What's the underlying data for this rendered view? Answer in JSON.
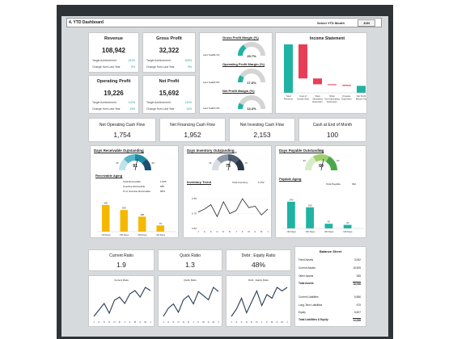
{
  "header": {
    "title": "4. YTD Dashboard",
    "select_label": "Select YTD Month",
    "month": "JUN"
  },
  "kpis": [
    {
      "title": "Revenue",
      "value": "108,942",
      "target_label": "Target Achievement",
      "target_pct": "101%",
      "change_label": "Change from Last Year",
      "change_pct": "5%"
    },
    {
      "title": "Gross Profit",
      "value": "32,322",
      "target_label": "Target Achievement",
      "target_pct": "109%",
      "change_label": "Change from Last Year",
      "change_pct": "9%"
    },
    {
      "title": "Operating Profit",
      "value": "19,226",
      "target_label": "Target Achievement",
      "target_pct": "112%",
      "change_label": "Change from Last Year",
      "change_pct": "13%"
    },
    {
      "title": "Net Profit",
      "value": "15,692",
      "target_label": "Target Achievement",
      "target_pct": "111%",
      "change_label": "Change from Last Year",
      "change_pct": "14%"
    }
  ],
  "margins": [
    {
      "title": "Gross Profit Margin (%)",
      "value": "29.7%",
      "last_year_label": "Last Year",
      "last_year_value": "29.1%",
      "fill": 0.297
    },
    {
      "title": "Operating Profit Margin (%)",
      "value": "17.6%",
      "last_year_label": "Last Year",
      "last_year_value": "16.5%",
      "fill": 0.176
    },
    {
      "title": "Net Profit Margin (%)",
      "value": "14.4%",
      "last_year_label": "Last Year",
      "last_year_value": "13.4%",
      "fill": 0.144
    }
  ],
  "income_statement": {
    "title": "Income Statement",
    "categories": [
      "Total Revenue",
      "Cost of Goods Sold",
      "Total Operating Expenses",
      "Other Non-Operating Expenses",
      "Finance Expenses",
      "Net Profit Before Tax"
    ],
    "values": [
      108942,
      -76620,
      -13096,
      -1540,
      -1994,
      15692
    ],
    "colors": {
      "positive": "#1fb3a4",
      "negative": "#e83e55"
    }
  },
  "cash": [
    {
      "title": "Net Operating Cash Flow",
      "value": "1,754"
    },
    {
      "title": "Net Financing Cash Flow",
      "value": "1,952"
    },
    {
      "title": "Net Investing Cash Flow",
      "value": "2,153"
    },
    {
      "title": "Cash at End of Month",
      "value": "100"
    }
  ],
  "receivable": {
    "title": "Days Receivable Outstanding",
    "value": "91",
    "ring_labels": [
      "25",
      "30",
      "60",
      "90"
    ],
    "aging_title": "Receivable Aging",
    "total_label": "Total Receivable",
    "total_value": "1,005",
    "overdue_label": "Overdue Receivable",
    "overdue_value": "685",
    "pct_label": "% of Overdue Receivable",
    "pct_value": "68%",
    "chart_data": {
      "type": "bar",
      "categories": [
        "<30 Days",
        "<60 Days",
        "<90 Days",
        ">90 Days"
      ],
      "values": [
        320,
        260,
        180,
        75
      ],
      "color": "#f5b800"
    }
  },
  "inventory": {
    "title": "Days Inventory Outstanding",
    "value": "75",
    "ring_labels": [
      "15",
      "30",
      "45",
      "75"
    ],
    "trend_title": "Inventory Trend",
    "total_label": "Total Inventory",
    "total_value": "6,702",
    "chart_data": {
      "type": "line",
      "x": [
        "J",
        "A",
        "S",
        "O",
        "N",
        "D",
        "J",
        "F",
        "M",
        "A",
        "M",
        "J"
      ],
      "values": [
        0.71,
        0.73,
        0.76,
        0.68,
        0.78,
        0.7,
        0.72,
        0.8,
        0.74,
        0.75,
        0.69,
        0.73
      ],
      "ylim": [
        0.6,
        0.85
      ],
      "yticks": [
        "0.80",
        "0.70",
        "0.60"
      ]
    }
  },
  "payable": {
    "title": "Days Payable Outstanding",
    "value": "60",
    "ring_labels": [
      "30",
      "45",
      "60"
    ],
    "aging_title": "Payable Aging",
    "total_label": "Total Payable",
    "total_value": "632",
    "chart_data": {
      "type": "bar",
      "categories": [
        "<30 Days",
        "<60 Days",
        "<90 Days",
        ">90 Days"
      ],
      "values": [
        240,
        190,
        42,
        32
      ],
      "color": "#1fb3a4"
    }
  },
  "ratios": [
    {
      "title": "Current Ratio",
      "value": "1.9",
      "chart_title": "Current Ratio",
      "chart_data": {
        "type": "line",
        "values": [
          1.5,
          1.6,
          1.7,
          1.55,
          1.75,
          1.8,
          1.7,
          1.85,
          1.9,
          1.8,
          1.95,
          1.9
        ]
      }
    },
    {
      "title": "Quick Ratio",
      "value": "1.3",
      "chart_title": "Quick Ratio",
      "chart_data": {
        "type": "line",
        "values": [
          1.0,
          1.1,
          1.15,
          1.05,
          1.2,
          1.25,
          1.15,
          1.3,
          1.25,
          1.2,
          1.35,
          1.3
        ]
      }
    },
    {
      "title": "Debt : Equity Ratio",
      "value": "48%",
      "chart_title": "Debt : Equity Ratio",
      "chart_data": {
        "type": "line",
        "values": [
          0.4,
          0.42,
          0.45,
          0.41,
          0.44,
          0.47,
          0.43,
          0.46,
          0.45,
          0.48,
          0.47,
          0.48
        ]
      }
    }
  ],
  "ratio_x_labels": [
    "J",
    "A",
    "S",
    "O",
    "N",
    "D",
    "J",
    "F",
    "M",
    "A",
    "M",
    "J"
  ],
  "balance_sheet": {
    "title": "Balance Sheet",
    "rows": [
      {
        "label": "Fixed Assets",
        "value": "3,062"
      },
      {
        "label": "Current Assets",
        "value": "15,509"
      },
      {
        "label": "Other Assets",
        "value": "365"
      },
      {
        "label": "Total Assets",
        "value": "18,936",
        "bold": true
      },
      {
        "label": "Current Liabilities",
        "value": "5,856"
      },
      {
        "label": "Long-Term Liabilities",
        "value": "575"
      },
      {
        "label": "Equity",
        "value": "8,507"
      },
      {
        "label": "Total Liabilities & Equity",
        "value": "14,938",
        "bold": true
      }
    ]
  }
}
